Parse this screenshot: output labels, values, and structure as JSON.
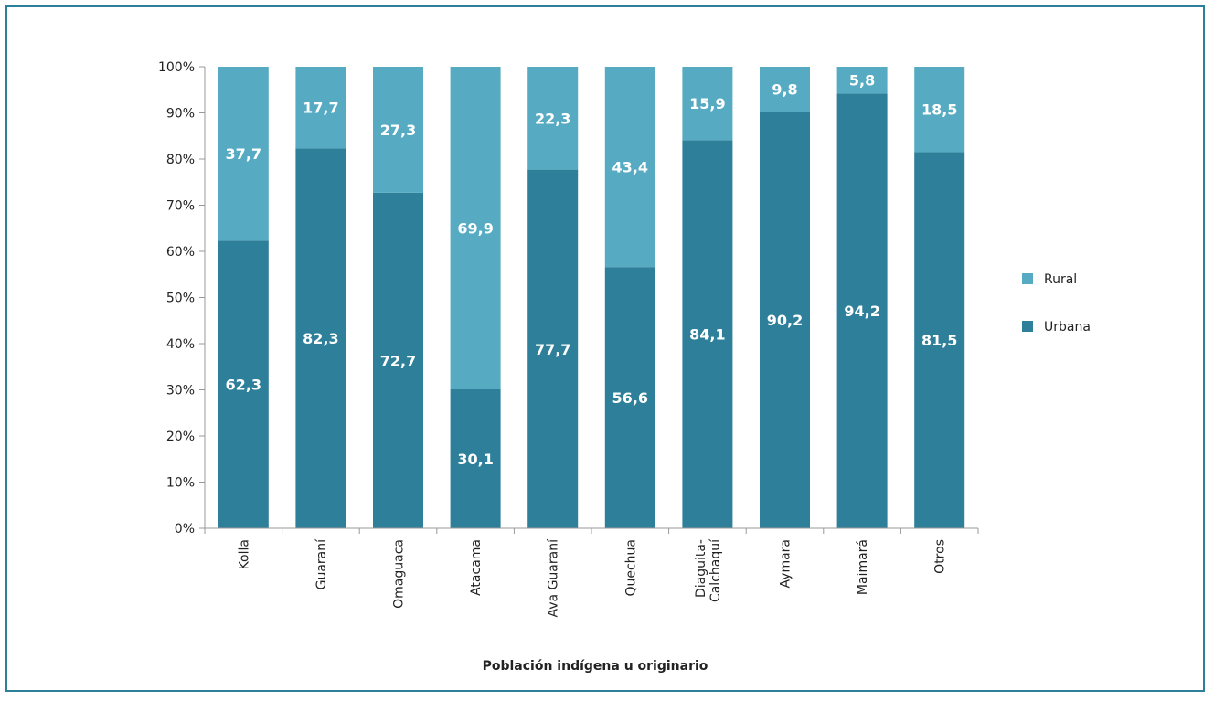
{
  "chart_data": {
    "type": "bar",
    "stacked": true,
    "normalized_percent": true,
    "categories": [
      "Kolla",
      "Guaraní",
      "Omaguaca",
      "Atacama",
      "Ava Guaraní",
      "Quechua",
      "Diaguita-Calchaquí",
      "Aymara",
      "Maimará",
      "Otros"
    ],
    "category_labels": [
      [
        "Kolla"
      ],
      [
        "Guaraní"
      ],
      [
        "Omaguaca"
      ],
      [
        "Atacama"
      ],
      [
        "Ava Guaraní"
      ],
      [
        "Quechua"
      ],
      [
        "Diaguita-",
        "Calchaquí"
      ],
      [
        "Aymara"
      ],
      [
        "Maimará"
      ],
      [
        "Otros"
      ]
    ],
    "series": [
      {
        "name": "Urbana",
        "values": [
          62.3,
          82.3,
          72.7,
          30.1,
          77.7,
          56.6,
          84.1,
          90.2,
          94.2,
          81.5
        ],
        "labels": [
          "62,3",
          "82,3",
          "72,7",
          "30,1",
          "77,7",
          "56,6",
          "84,1",
          "90,2",
          "94,2",
          "81,5"
        ],
        "color": "#2e7f99"
      },
      {
        "name": "Rural",
        "values": [
          37.7,
          17.7,
          27.3,
          69.9,
          22.3,
          43.4,
          15.9,
          9.8,
          5.8,
          18.5
        ],
        "labels": [
          "37,7",
          "17,7",
          "27,3",
          "69,9",
          "22,3",
          "43,4",
          "15,9",
          "9,8",
          "5,8",
          "18,5"
        ],
        "color": "#56abc2"
      }
    ],
    "xlabel": "Población indígena u originario",
    "ylabel": "",
    "ylim": [
      0,
      100
    ],
    "yticks": [
      "0%",
      "10%",
      "20%",
      "30%",
      "40%",
      "50%",
      "60%",
      "70%",
      "80%",
      "90%",
      "100%"
    ],
    "legend_position": "right",
    "legend": [
      "Rural",
      "Urbana"
    ],
    "grid": false
  }
}
